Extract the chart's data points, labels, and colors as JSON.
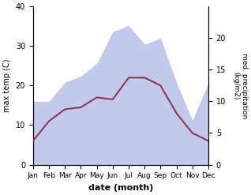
{
  "months": [
    "Jan",
    "Feb",
    "Mar",
    "Apr",
    "May",
    "Jun",
    "Jul",
    "Aug",
    "Sep",
    "Oct",
    "Nov",
    "Dec"
  ],
  "temp_max": [
    6,
    11,
    14,
    14.5,
    17,
    16.5,
    22,
    22,
    20,
    13,
    8,
    6
  ],
  "precip": [
    10,
    10,
    13,
    14,
    16,
    21,
    22,
    19,
    20,
    13,
    7,
    13
  ],
  "temp_color": "#8b3a52",
  "precip_color": "#b8c0e8",
  "left_ylim": [
    0,
    40
  ],
  "right_ylim": [
    0,
    25
  ],
  "right_yticks": [
    0,
    5,
    10,
    15,
    20
  ],
  "left_yticks": [
    0,
    10,
    20,
    30,
    40
  ],
  "xlabel": "date (month)",
  "ylabel_left": "max temp (C)",
  "ylabel_right": "med. precipitation\n(kg/m2)",
  "figsize": [
    3.18,
    2.47
  ],
  "dpi": 100
}
